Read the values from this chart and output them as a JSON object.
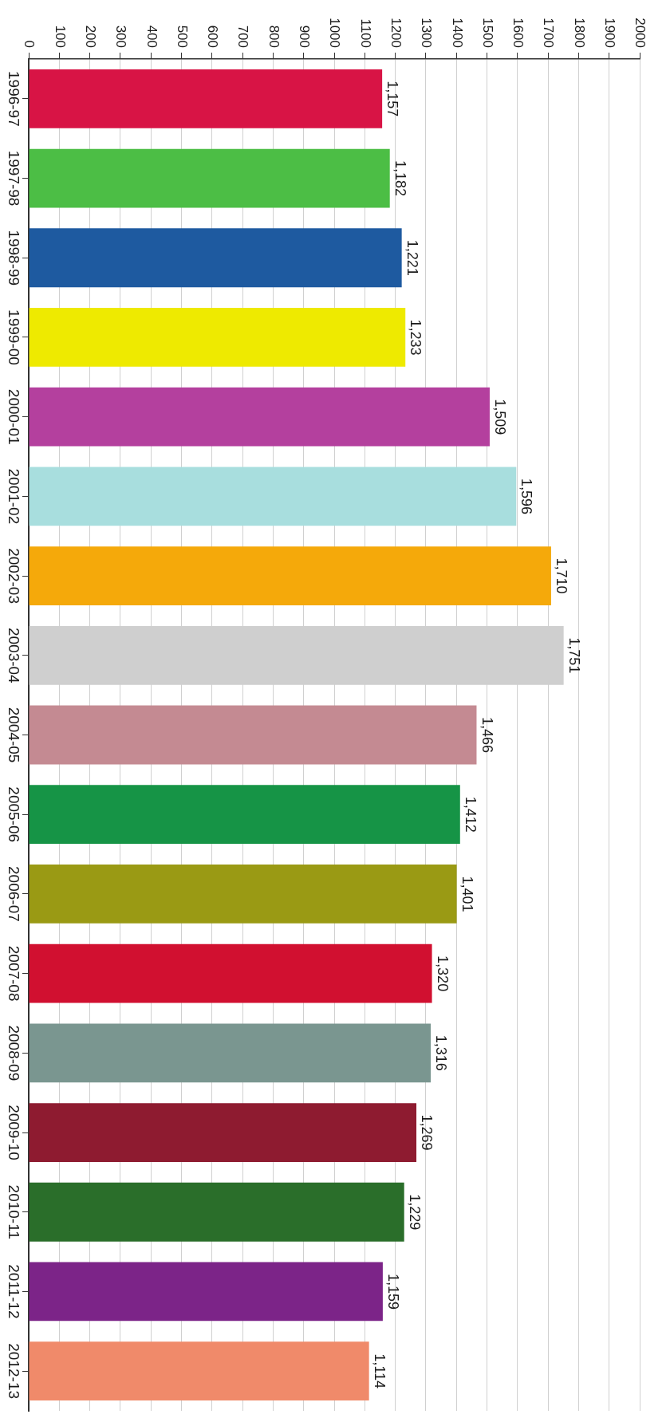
{
  "chart_data": {
    "type": "bar",
    "orientation": "horizontal",
    "categories": [
      "1996-97",
      "1997-98",
      "1998-99",
      "1999-00",
      "2000-01",
      "2001-02",
      "2002-03",
      "2003-04",
      "2004-05",
      "2005-06",
      "2006-07",
      "2007-08",
      "2008-09",
      "2009-10",
      "2010-11",
      "2011-12",
      "2012-13"
    ],
    "values": [
      1157,
      1182,
      1221,
      1233,
      1509,
      1596,
      1710,
      1751,
      1466,
      1412,
      1401,
      1320,
      1316,
      1269,
      1229,
      1159,
      1114
    ],
    "value_labels": [
      "1,157",
      "1,182",
      "1,221",
      "1,233",
      "1,509",
      "1,596",
      "1,710",
      "1,751",
      "1,466",
      "1,412",
      "1,401",
      "1,320",
      "1,316",
      "1,269",
      "1,229",
      "1,159",
      "1,114"
    ],
    "colors": [
      "#d81445",
      "#4cbe45",
      "#1e5aa0",
      "#eeea00",
      "#b4409e",
      "#a8dede",
      "#f5a90a",
      "#cfcfcf",
      "#c48a92",
      "#169446",
      "#9a9a14",
      "#d11030",
      "#7a9690",
      "#8e1b30",
      "#2a6e2a",
      "#7c2488",
      "#f08a6a"
    ],
    "xlim": [
      0,
      2000
    ],
    "xticks": [
      0,
      100,
      200,
      300,
      400,
      500,
      600,
      700,
      800,
      900,
      1000,
      1100,
      1200,
      1300,
      1400,
      1500,
      1600,
      1700,
      1800,
      1900,
      2000
    ],
    "grid": "x"
  }
}
